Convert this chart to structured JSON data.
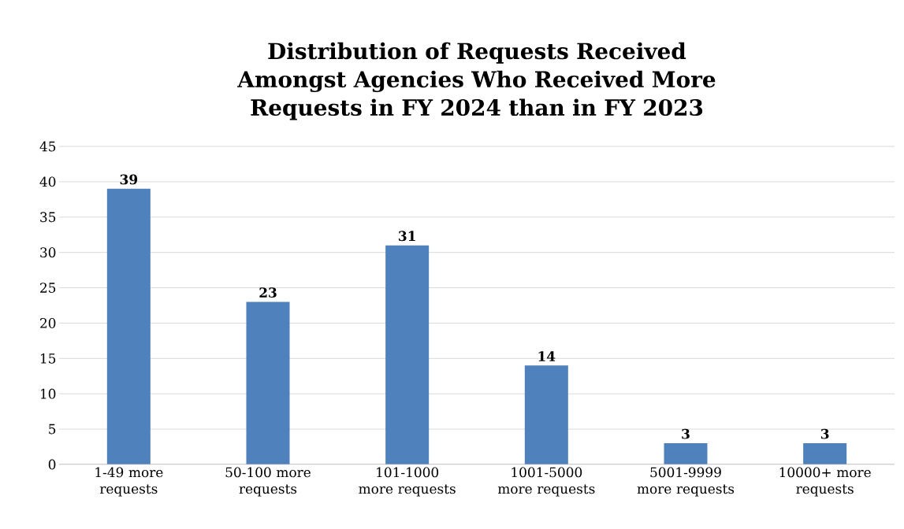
{
  "chart_data": {
    "type": "bar",
    "title": "Distribution of Requests Received Amongst Agencies Who Received More Requests in FY 2024 than in FY 2023",
    "categories": [
      "1-49 more requests",
      "50-100 more requests",
      "101-1000 more requests",
      "1001-5000 more requests",
      "5001-9999 more requests",
      "10000+ more requests"
    ],
    "values": [
      39,
      23,
      31,
      14,
      3,
      3
    ],
    "color": "#4f81bd",
    "ylim": [
      0,
      45
    ],
    "yticks": [
      0,
      5,
      10,
      15,
      20,
      25,
      30,
      35,
      40,
      45
    ],
    "grid": "y",
    "data_labels": true
  }
}
